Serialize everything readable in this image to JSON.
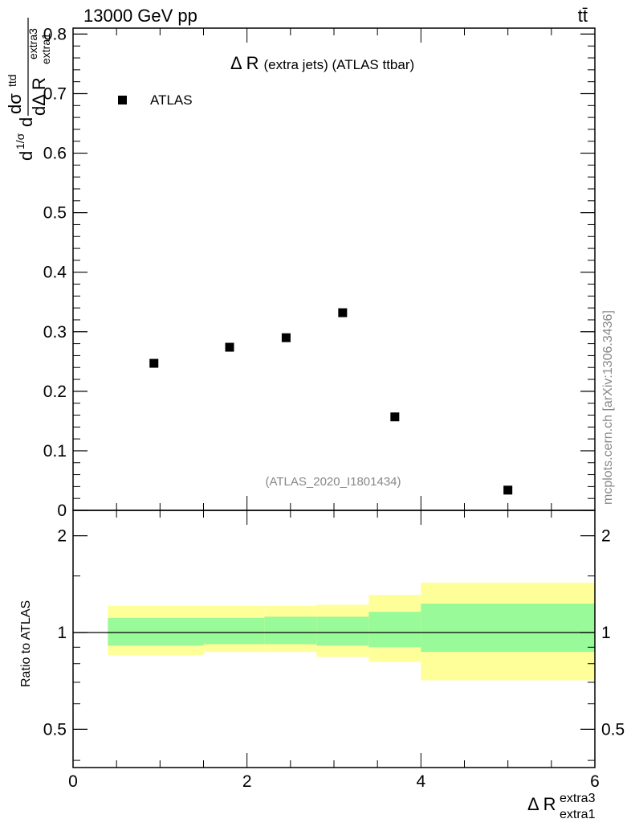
{
  "header": {
    "left": "13000 GeV pp",
    "right": "tt̄"
  },
  "side_credit": "mcplots.cern.ch [arXiv:1306.3436]",
  "watermark": "(ATLAS_2020_I1801434)",
  "colors": {
    "band_inner": "#98fa98",
    "band_outer": "#ffff99",
    "marker": "#000000",
    "reference_line": "#000000",
    "watermark": "#888888"
  },
  "chart_data": [
    {
      "type": "scatter",
      "title_main": "Δ R",
      "title_small": "(extra jets) (ATLAS ttbar)",
      "ylabel": {
        "frac_outer": "1/σ",
        "prefix": "d",
        "num": "dσ",
        "num_sub": "ttd",
        "den": "dΔ R",
        "den_sub": "extra1",
        "den_sup": "extra3"
      },
      "xlim": [
        0,
        6
      ],
      "ylim": [
        0,
        0.81
      ],
      "yticks": [
        "0",
        "0.1",
        "0.2",
        "0.3",
        "0.4",
        "0.5",
        "0.6",
        "0.7",
        "0.8"
      ],
      "ytick_values": [
        0,
        0.1,
        0.2,
        0.3,
        0.4,
        0.5,
        0.6,
        0.7,
        0.8
      ],
      "legend": {
        "position": "top-left",
        "entries": [
          "ATLAS"
        ]
      },
      "series": [
        {
          "name": "ATLAS",
          "x": [
            0.93,
            1.8,
            2.45,
            3.1,
            3.7,
            5.0
          ],
          "y": [
            0.247,
            0.274,
            0.29,
            0.332,
            0.157,
            0.034
          ]
        }
      ]
    },
    {
      "type": "area",
      "ylabel": "Ratio to ATLAS",
      "xlabel": "Δ R",
      "xlabel_sup": "extra3",
      "xlabel_sub": "extra1",
      "xlim": [
        0,
        6
      ],
      "ylim": [
        0.38,
        2.4
      ],
      "ylog": true,
      "yticks": [
        "0.5",
        "1",
        "2"
      ],
      "ytick_values": [
        0.5,
        1,
        2
      ],
      "xticks": [
        "0",
        "2",
        "4",
        "6"
      ],
      "xtick_values": [
        0,
        2,
        4,
        6
      ],
      "reference": 1,
      "bins": [
        {
          "x0": 0.4,
          "x1": 1.5,
          "inner": [
            0.91,
            1.11
          ],
          "outer": [
            0.85,
            1.21
          ]
        },
        {
          "x0": 1.5,
          "x1": 2.2,
          "inner": [
            0.92,
            1.11
          ],
          "outer": [
            0.87,
            1.21
          ]
        },
        {
          "x0": 2.2,
          "x1": 2.8,
          "inner": [
            0.92,
            1.12
          ],
          "outer": [
            0.87,
            1.21
          ]
        },
        {
          "x0": 2.8,
          "x1": 3.4,
          "inner": [
            0.91,
            1.12
          ],
          "outer": [
            0.84,
            1.22
          ]
        },
        {
          "x0": 3.4,
          "x1": 4.0,
          "inner": [
            0.9,
            1.16
          ],
          "outer": [
            0.81,
            1.31
          ]
        },
        {
          "x0": 4.0,
          "x1": 6.0,
          "inner": [
            0.87,
            1.23
          ],
          "outer": [
            0.71,
            1.43
          ]
        }
      ]
    }
  ]
}
